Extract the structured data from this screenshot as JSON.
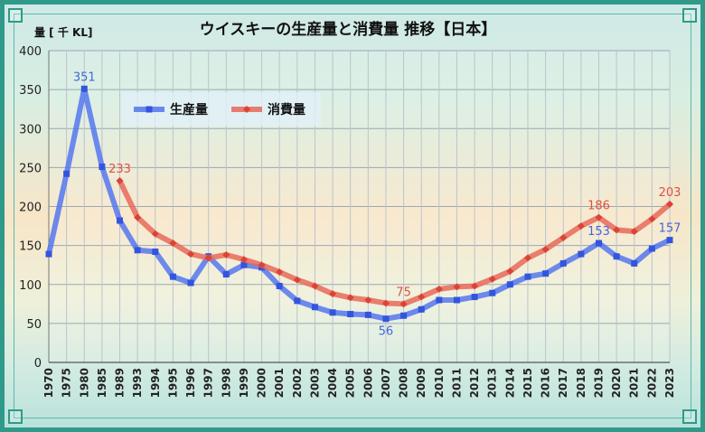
{
  "chart_data": {
    "type": "line",
    "title": "ウイスキーの生産量と消費量 推移【日本】",
    "ylabel": "量 [ 千 KL]",
    "xlabel": "",
    "ylim": [
      0,
      400
    ],
    "yticks": [
      0,
      50,
      100,
      150,
      200,
      250,
      300,
      350,
      400
    ],
    "grid": true,
    "legend_position": "upper-left",
    "categories": [
      "1970",
      "1975",
      "1980",
      "1985",
      "1989",
      "1993",
      "1994",
      "1995",
      "1996",
      "1997",
      "1998",
      "1999",
      "2000",
      "2001",
      "2002",
      "2003",
      "2004",
      "2005",
      "2006",
      "2007",
      "2008",
      "2009",
      "2010",
      "2011",
      "2012",
      "2013",
      "2014",
      "2015",
      "2016",
      "2017",
      "2018",
      "2019",
      "2020",
      "2021",
      "2022",
      "2023"
    ],
    "series": [
      {
        "name": "生産量",
        "color": "#5577ee",
        "marker": "square",
        "values": [
          139,
          242,
          351,
          251,
          182,
          144,
          142,
          110,
          102,
          136,
          113,
          125,
          122,
          98,
          79,
          71,
          64,
          62,
          61,
          56,
          60,
          68,
          80,
          80,
          84,
          89,
          100,
          110,
          114,
          127,
          139,
          153,
          136,
          127,
          146,
          157
        ]
      },
      {
        "name": "消費量",
        "color": "#e86a5a",
        "marker": "diamond",
        "values": [
          null,
          null,
          null,
          null,
          233,
          186,
          165,
          153,
          139,
          134,
          138,
          132,
          125,
          116,
          106,
          98,
          88,
          83,
          80,
          76,
          75,
          84,
          94,
          97,
          98,
          107,
          117,
          134,
          145,
          160,
          175,
          186,
          170,
          168,
          184,
          203
        ]
      }
    ],
    "annotations": [
      {
        "series": 0,
        "category": "1980",
        "text": "351"
      },
      {
        "series": 1,
        "category": "1989",
        "text": "233"
      },
      {
        "series": 0,
        "category": "2007",
        "text": "56"
      },
      {
        "series": 1,
        "category": "2008",
        "text": "75"
      },
      {
        "series": 0,
        "category": "2019",
        "text": "153"
      },
      {
        "series": 1,
        "category": "2019",
        "text": "186"
      },
      {
        "series": 0,
        "category": "2023",
        "text": "157"
      },
      {
        "series": 1,
        "category": "2023",
        "text": "203"
      }
    ]
  }
}
